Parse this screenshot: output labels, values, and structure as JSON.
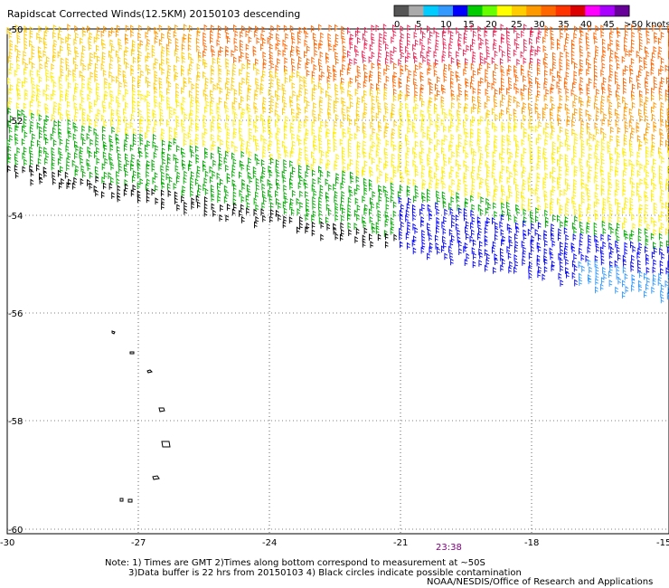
{
  "title": "Rapidscat Corrected Winds(12.5KM) 20150103 descending",
  "legend": {
    "tick_labels": [
      "0",
      "5",
      "10",
      "15",
      "20",
      "25",
      "30",
      "35",
      "40",
      "45",
      ">50 knots"
    ],
    "colors": [
      "#555555",
      "#aaaaaa",
      "#00ccff",
      "#3399ff",
      "#0000ff",
      "#00cc00",
      "#66ff00",
      "#ffff00",
      "#ffcc00",
      "#ff9900",
      "#ff6600",
      "#ff3300",
      "#dd0000",
      "#ff00ff",
      "#aa00ff",
      "#660099"
    ]
  },
  "axes": {
    "lon_labels": [
      "-30",
      "-27",
      "-24",
      "-21",
      "-18",
      "-15"
    ],
    "lat_labels": [
      "-50",
      "-52",
      "-54",
      "-56",
      "-58",
      "-60"
    ],
    "lon_range": [
      -30,
      -15
    ],
    "lat_range": [
      -50,
      -60
    ]
  },
  "time_label": "23:38",
  "notes": {
    "line1": "Note: 1) Times are GMT 2)Times along bottom correspond to measurement at ~50S",
    "line2": "3)Data buffer is 22 hrs from 20150103 4) Black circles indicate possible contamination"
  },
  "credit": "NOAA/NESDIS/Office of Research and Applications"
}
